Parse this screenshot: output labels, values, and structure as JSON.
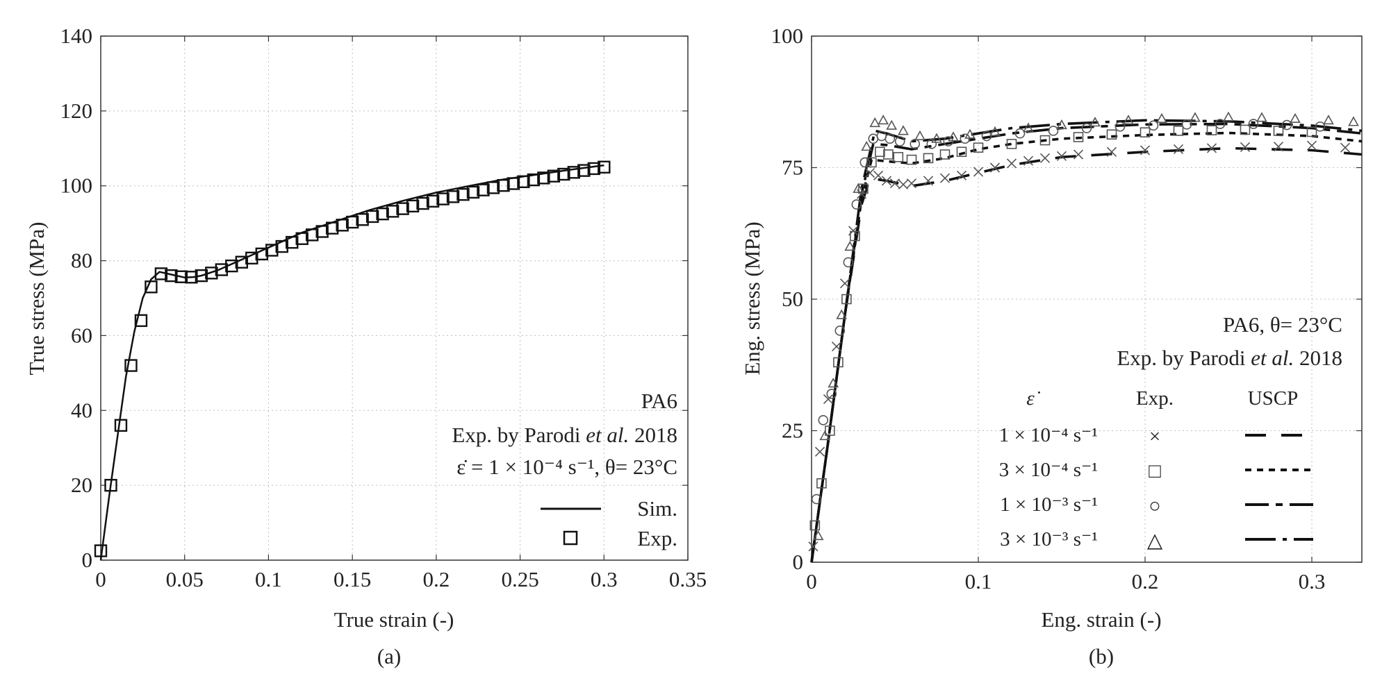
{
  "colors": {
    "ink": "#111111",
    "grid": "#bdbdbd",
    "axis": "#333333",
    "marker": "#555555"
  },
  "chart_data": [
    {
      "type": "line",
      "panel_label": "(a)",
      "xlabel": "True strain (-)",
      "ylabel": "True stress (MPa)",
      "xlim": [
        0,
        0.35
      ],
      "ylim": [
        0,
        140
      ],
      "xticks": [
        0,
        0.05,
        0.1,
        0.15,
        0.2,
        0.25,
        0.3,
        0.35
      ],
      "xtick_labels": [
        "0",
        "0.05",
        "0.1",
        "0.15",
        "0.2",
        "0.25",
        "0.3",
        "0.35"
      ],
      "yticks": [
        0,
        20,
        40,
        60,
        80,
        100,
        120,
        140
      ],
      "ytick_labels": [
        "0",
        "20",
        "40",
        "60",
        "80",
        "100",
        "120",
        "140"
      ],
      "grid": true,
      "annotation": {
        "line1": "PA6",
        "line2a": "Exp. by Parodi ",
        "line2b": "et al.",
        "line2c": " 2018",
        "line3": "ε̇ = 1 × 10⁻⁴ s⁻¹, θ= 23°C"
      },
      "legend": {
        "entries": [
          {
            "label": "Sim.",
            "style": "solid"
          },
          {
            "label": "Exp.",
            "marker": "square"
          }
        ]
      },
      "series": [
        {
          "name": "Sim.",
          "style": "solid",
          "x": [
            0,
            0.005,
            0.01,
            0.015,
            0.02,
            0.025,
            0.03,
            0.035,
            0.04,
            0.045,
            0.05,
            0.055,
            0.06,
            0.07,
            0.08,
            0.09,
            0.1,
            0.12,
            0.14,
            0.16,
            0.18,
            0.2,
            0.22,
            0.24,
            0.26,
            0.28,
            0.3
          ],
          "y": [
            0,
            17,
            33,
            49,
            61,
            70,
            75,
            77,
            76.5,
            76,
            75.5,
            75.6,
            76,
            77.5,
            79.5,
            81.5,
            83.5,
            87.5,
            90.5,
            93.5,
            96,
            98.2,
            100,
            101.7,
            103,
            104.3,
            105.5
          ]
        },
        {
          "name": "Exp.",
          "marker": "square",
          "x": [
            0,
            0.006,
            0.012,
            0.018,
            0.024,
            0.03,
            0.036,
            0.042,
            0.048,
            0.054,
            0.06,
            0.066,
            0.072,
            0.078,
            0.084,
            0.09,
            0.096,
            0.102,
            0.108,
            0.114,
            0.12,
            0.126,
            0.132,
            0.138,
            0.144,
            0.15,
            0.156,
            0.162,
            0.168,
            0.174,
            0.18,
            0.186,
            0.192,
            0.198,
            0.204,
            0.21,
            0.216,
            0.222,
            0.228,
            0.234,
            0.24,
            0.246,
            0.252,
            0.258,
            0.264,
            0.27,
            0.276,
            0.282,
            0.288,
            0.294,
            0.3
          ],
          "y": [
            2.5,
            20,
            36,
            52,
            64,
            73,
            76.5,
            76,
            75.7,
            75.6,
            76,
            76.7,
            77.6,
            78.6,
            79.6,
            80.7,
            81.8,
            82.8,
            83.8,
            84.9,
            85.9,
            86.9,
            87.8,
            88.7,
            89.5,
            90.3,
            91,
            91.8,
            92.5,
            93.2,
            93.9,
            94.6,
            95.3,
            95.9,
            96.5,
            97.1,
            97.7,
            98.3,
            98.9,
            99.5,
            100.1,
            100.6,
            101.1,
            101.6,
            102.1,
            102.6,
            103.1,
            103.6,
            104.1,
            104.6,
            105
          ]
        }
      ]
    },
    {
      "type": "line",
      "panel_label": "(b)",
      "xlabel": "Eng. strain (-)",
      "ylabel": "Eng. stress (MPa)",
      "xlim": [
        0,
        0.33
      ],
      "ylim": [
        0,
        100
      ],
      "xticks": [
        0,
        0.1,
        0.2,
        0.3
      ],
      "xtick_labels": [
        "0",
        "0.1",
        "0.2",
        "0.3"
      ],
      "yticks": [
        0,
        25,
        50,
        75,
        100
      ],
      "ytick_labels": [
        "0",
        "25",
        "50",
        "75",
        "100"
      ],
      "grid": true,
      "annotation": {
        "line1": "PA6, θ= 23°C",
        "line2a": "Exp. by Parodi ",
        "line2b": "et al.",
        "line2c": " 2018"
      },
      "legend": {
        "col_rate": "ε̇",
        "col_exp": "Exp.",
        "col_sim": "USCP",
        "rows": [
          {
            "rate": "1 × 10⁻⁴ s⁻¹",
            "marker": "×",
            "dash": "long-dash"
          },
          {
            "rate": "3 × 10⁻⁴ s⁻¹",
            "marker": "□",
            "dash": "short-dash"
          },
          {
            "rate": "1 × 10⁻³ s⁻¹",
            "marker": "○",
            "dash": "dash-dot"
          },
          {
            "rate": "3 × 10⁻³ s⁻¹",
            "marker": "△",
            "dash": "long-dash-dot"
          }
        ]
      },
      "series": [
        {
          "name": "1 × 10⁻⁴ s⁻¹ USCP",
          "dash": "long-dash",
          "x": [
            0,
            0.01,
            0.02,
            0.03,
            0.035,
            0.045,
            0.06,
            0.08,
            0.1,
            0.12,
            0.15,
            0.2,
            0.25,
            0.3,
            0.33
          ],
          "y": [
            0,
            23,
            47,
            68,
            73,
            72.5,
            71.5,
            72.5,
            74,
            75.5,
            77,
            78,
            78.7,
            78.3,
            77.5
          ]
        },
        {
          "name": "3 × 10⁻⁴ s⁻¹ USCP",
          "dash": "short-dash",
          "x": [
            0,
            0.01,
            0.02,
            0.03,
            0.036,
            0.045,
            0.06,
            0.08,
            0.1,
            0.12,
            0.15,
            0.2,
            0.25,
            0.3,
            0.33
          ],
          "y": [
            0,
            23,
            47,
            69,
            76.5,
            76.2,
            75.8,
            76.8,
            78.5,
            79.5,
            80.5,
            81.2,
            81.6,
            81,
            80
          ]
        },
        {
          "name": "1 × 10⁻³ s⁻¹ USCP",
          "dash": "dash-dot",
          "x": [
            0,
            0.01,
            0.02,
            0.03,
            0.037,
            0.045,
            0.06,
            0.08,
            0.1,
            0.12,
            0.15,
            0.2,
            0.25,
            0.3,
            0.33
          ],
          "y": [
            0,
            23,
            47,
            70,
            79.5,
            79.3,
            78.5,
            79.5,
            80.5,
            81.5,
            82.5,
            83.2,
            83.3,
            82.5,
            81.5
          ]
        },
        {
          "name": "3 × 10⁻³ s⁻¹ USCP",
          "dash": "long-dash-dot",
          "x": [
            0,
            0.01,
            0.02,
            0.03,
            0.038,
            0.045,
            0.06,
            0.08,
            0.1,
            0.12,
            0.15,
            0.2,
            0.25,
            0.3,
            0.33
          ],
          "y": [
            0,
            23,
            47,
            71,
            82,
            81.5,
            80,
            80.5,
            81.5,
            82.5,
            83.3,
            84,
            83.8,
            83,
            82
          ]
        },
        {
          "name": "1 × 10⁻⁴ s⁻¹ Exp.",
          "marker": "x",
          "x": [
            0.001,
            0.005,
            0.01,
            0.015,
            0.02,
            0.025,
            0.03,
            0.035,
            0.04,
            0.045,
            0.05,
            0.055,
            0.06,
            0.07,
            0.08,
            0.09,
            0.1,
            0.11,
            0.12,
            0.13,
            0.14,
            0.15,
            0.16,
            0.18,
            0.2,
            0.22,
            0.24,
            0.26,
            0.28,
            0.3,
            0.32
          ],
          "y": [
            3,
            21,
            31,
            41,
            53,
            63,
            70,
            74,
            73.5,
            72.5,
            72,
            71.8,
            72,
            72.5,
            73,
            73.5,
            74.2,
            75,
            75.8,
            76.3,
            76.8,
            77.2,
            77.5,
            78,
            78.3,
            78.5,
            78.7,
            78.9,
            79,
            79.2,
            78.8
          ]
        },
        {
          "name": "3 × 10⁻⁴ s⁻¹ Exp.",
          "marker": "square",
          "x": [
            0.002,
            0.006,
            0.011,
            0.016,
            0.021,
            0.026,
            0.031,
            0.036,
            0.041,
            0.046,
            0.052,
            0.06,
            0.07,
            0.08,
            0.09,
            0.1,
            0.12,
            0.14,
            0.16,
            0.18,
            0.2,
            0.22,
            0.24,
            0.26,
            0.28,
            0.3
          ],
          "y": [
            7,
            15,
            25,
            38,
            50,
            62,
            71,
            76,
            78,
            77.5,
            77,
            76.5,
            76.8,
            77.5,
            78,
            78.8,
            79.5,
            80.2,
            80.8,
            81.3,
            81.7,
            82,
            82.1,
            82.2,
            82,
            81.8
          ]
        },
        {
          "name": "1 × 10⁻³ s⁻¹ Exp.",
          "marker": "circle",
          "x": [
            0.003,
            0.007,
            0.012,
            0.017,
            0.022,
            0.027,
            0.032,
            0.037,
            0.042,
            0.047,
            0.053,
            0.062,
            0.072,
            0.082,
            0.092,
            0.105,
            0.125,
            0.145,
            0.165,
            0.185,
            0.205,
            0.225,
            0.245,
            0.265,
            0.285,
            0.305
          ],
          "y": [
            12,
            27,
            32,
            44,
            57,
            68,
            76,
            80.5,
            81,
            80.5,
            80,
            79.5,
            79.5,
            80,
            80.5,
            81,
            81.5,
            82,
            82.5,
            82.8,
            83,
            83.2,
            83.3,
            83.3,
            83.1,
            82.8
          ]
        },
        {
          "name": "3 × 10⁻³ s⁻¹ Exp.",
          "marker": "triangle",
          "x": [
            0.004,
            0.008,
            0.013,
            0.018,
            0.023,
            0.028,
            0.033,
            0.038,
            0.043,
            0.048,
            0.055,
            0.065,
            0.075,
            0.085,
            0.095,
            0.11,
            0.13,
            0.15,
            0.17,
            0.19,
            0.21,
            0.23,
            0.25,
            0.27,
            0.29,
            0.31,
            0.325
          ],
          "y": [
            5,
            24,
            34,
            47,
            60,
            71,
            79,
            83.5,
            84,
            83,
            82,
            81,
            80.5,
            80.8,
            81.3,
            81.8,
            82.5,
            83.1,
            83.6,
            84,
            84.3,
            84.5,
            84.6,
            84.5,
            84.3,
            84,
            83.7
          ]
        }
      ]
    }
  ]
}
